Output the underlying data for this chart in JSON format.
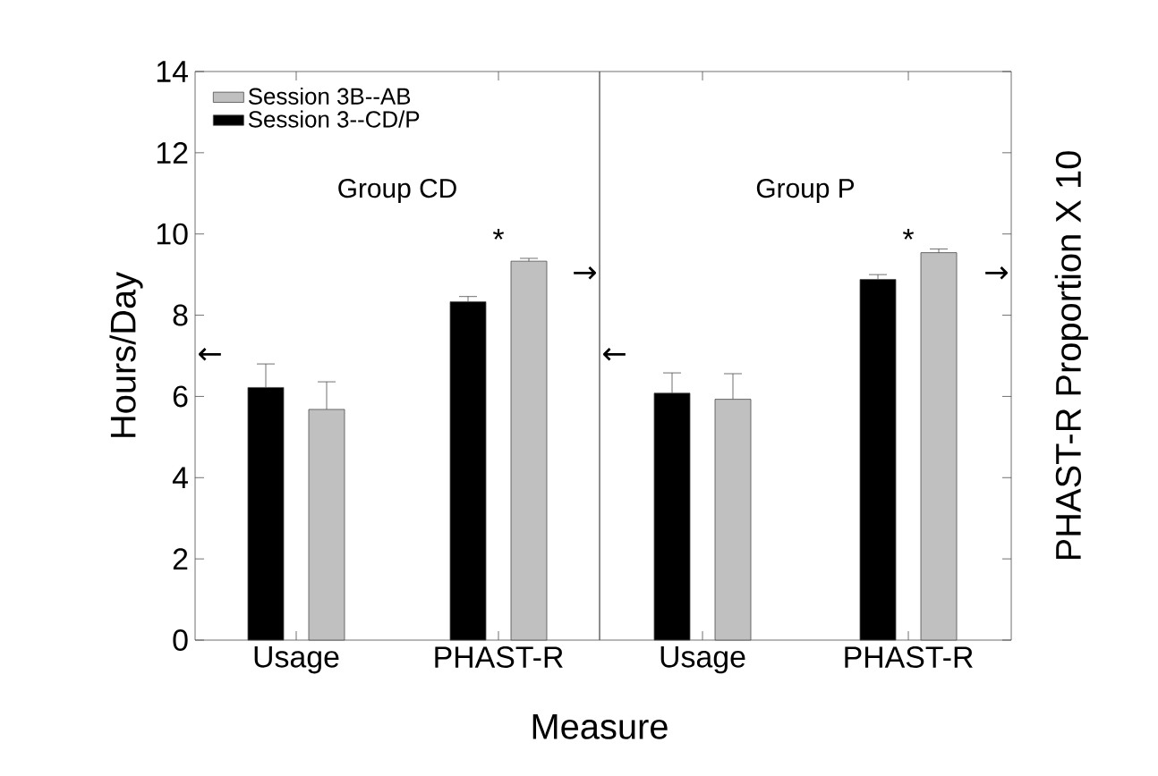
{
  "chart_data": [
    {
      "type": "bar",
      "categories": [
        "Usage",
        "PHAST-R"
      ],
      "ylim": [
        0,
        14
      ],
      "yticks": [
        0,
        2,
        4,
        6,
        8,
        10,
        12,
        14
      ],
      "ylabel": "Hours/Day",
      "xlabel": "Measure",
      "legend": "top left",
      "series": [
        {
          "name": "Session 3--CD/P",
          "color": "#000000",
          "values": [
            6.22,
            8.33
          ],
          "errors": [
            [
              6.22,
              6.8
            ],
            [
              8.33,
              8.46
            ]
          ]
        },
        {
          "name": "Session 3B--AB",
          "color": "#c0c0c0",
          "values": [
            5.68,
            9.33
          ],
          "errors": [
            [
              5.68,
              6.36
            ],
            [
              9.33,
              9.4
            ]
          ]
        }
      ],
      "annotations": [
        "Group CD",
        "*",
        "←",
        "→"
      ]
    },
    {
      "type": "bar",
      "categories": [
        "Usage",
        "PHAST-R"
      ],
      "ylim": [
        0,
        14
      ],
      "yticks": [
        0,
        2,
        4,
        6,
        8,
        10,
        12,
        14
      ],
      "tick_labels": "x",
      "y2label": "PHAST-R Proportion X 10",
      "series": [
        {
          "color": "#000000",
          "values": [
            6.08,
            8.88
          ],
          "errors": [
            [
              6.08,
              6.58
            ],
            [
              8.88,
              9.0
            ]
          ]
        },
        {
          "color": "#c0c0c0",
          "values": [
            5.93,
            9.54
          ],
          "errors": [
            [
              5.93,
              6.56
            ],
            [
              9.54,
              9.63
            ]
          ]
        }
      ],
      "annotations": [
        "Group P",
        "*",
        "←",
        "→"
      ]
    }
  ]
}
